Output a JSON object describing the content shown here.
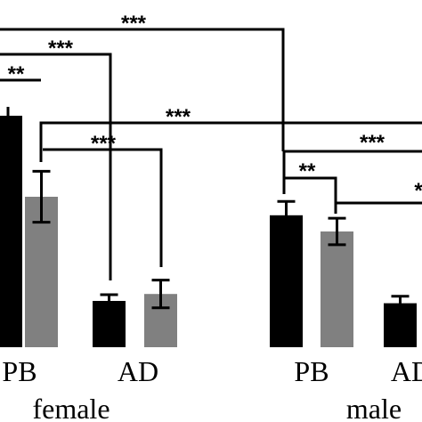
{
  "chart_data": {
    "type": "bar",
    "title": "",
    "xlabel": "",
    "ylabel": "",
    "ylim": [
      0,
      100
    ],
    "groups": [
      {
        "name": "female",
        "categories": [
          "PB",
          "AD"
        ]
      },
      {
        "name": "male",
        "categories": [
          "PB",
          "AD"
        ]
      }
    ],
    "series": [
      {
        "name": "",
        "color": "#000000",
        "values": [
          100,
          20,
          57,
          19
        ],
        "errors": [
          null,
          2.7,
          6,
          3
        ]
      },
      {
        "name": "",
        "color": "#808080",
        "values": [
          65,
          23,
          50,
          null
        ],
        "errors": [
          11,
          6,
          5.7,
          null
        ]
      }
    ],
    "significance": [
      {
        "label": "***",
        "from": "female PB black",
        "to": "male PB black"
      },
      {
        "label": "***",
        "from": "female PB black",
        "to": "female AD black"
      },
      {
        "label": "**",
        "from": "female PB black",
        "to": "female PB gray"
      },
      {
        "label": "***",
        "from": "female PB gray",
        "to": "male PB gray"
      },
      {
        "label": "***",
        "from": "female PB gray",
        "to": "female AD gray"
      },
      {
        "label": "***",
        "from": "male PB black",
        "to": "male AD black"
      },
      {
        "label": "**",
        "from": "male PB black",
        "to": "male PB gray"
      },
      {
        "label": "*",
        "from": "male PB gray",
        "to": "male AD"
      }
    ]
  }
}
